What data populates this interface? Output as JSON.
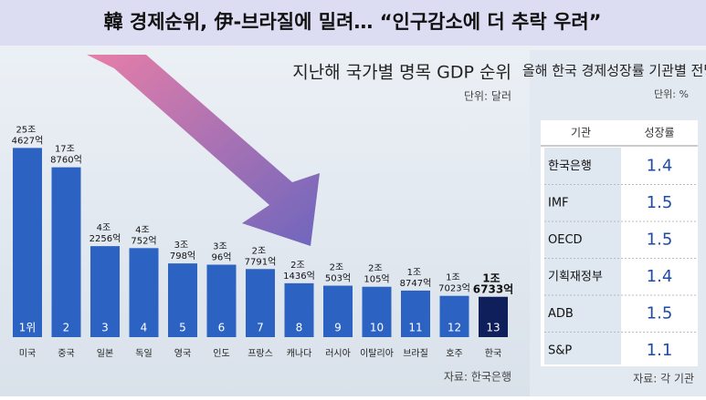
{
  "headline": "韓 경제순위, 伊-브라질에 밀려… “인구감소에 더 추락 우려”",
  "chart_data": {
    "type": "bar",
    "title": "지난해 국가별 명목 GDP 순위",
    "unit": "단위: 달러",
    "source": "자료: 한국은행",
    "categories": [
      "미국",
      "중국",
      "일본",
      "독일",
      "영국",
      "인도",
      "프랑스",
      "캐나다",
      "러시아",
      "이탈리아",
      "브라질",
      "호주",
      "한국"
    ],
    "ranks": [
      "1위",
      "2",
      "3",
      "4",
      "5",
      "6",
      "7",
      "8",
      "9",
      "10",
      "11",
      "12",
      "13"
    ],
    "values": [
      254627,
      178760,
      42256,
      40752,
      30798,
      30096,
      27791,
      21436,
      20503,
      20105,
      18747,
      17023,
      16733
    ],
    "value_labels": [
      "25조 4627억",
      "17조 8760억",
      "4조 2256억",
      "4조 752억",
      "3조 798억",
      "3조 96억",
      "2조 7791억",
      "2조 1436억",
      "2조 503억",
      "2조 105억",
      "1조 8747억",
      "1조 7023억",
      "1조 6733억"
    ],
    "color": "#2c62c2",
    "highlight_color": "#0f1f5c",
    "highlight_index": 12,
    "log_scale": true
  },
  "table": {
    "title": "올해 한국 경제성장률 기관별 전망",
    "unit": "단위: %",
    "columns": [
      "기관",
      "성장률"
    ],
    "rows": [
      [
        "한국은행",
        "1.4"
      ],
      [
        "IMF",
        "1.5"
      ],
      [
        "OECD",
        "1.5"
      ],
      [
        "기획재정부",
        "1.4"
      ],
      [
        "ADB",
        "1.5"
      ],
      [
        "S&P",
        "1.1"
      ]
    ],
    "source": "자료: 각 기관"
  }
}
